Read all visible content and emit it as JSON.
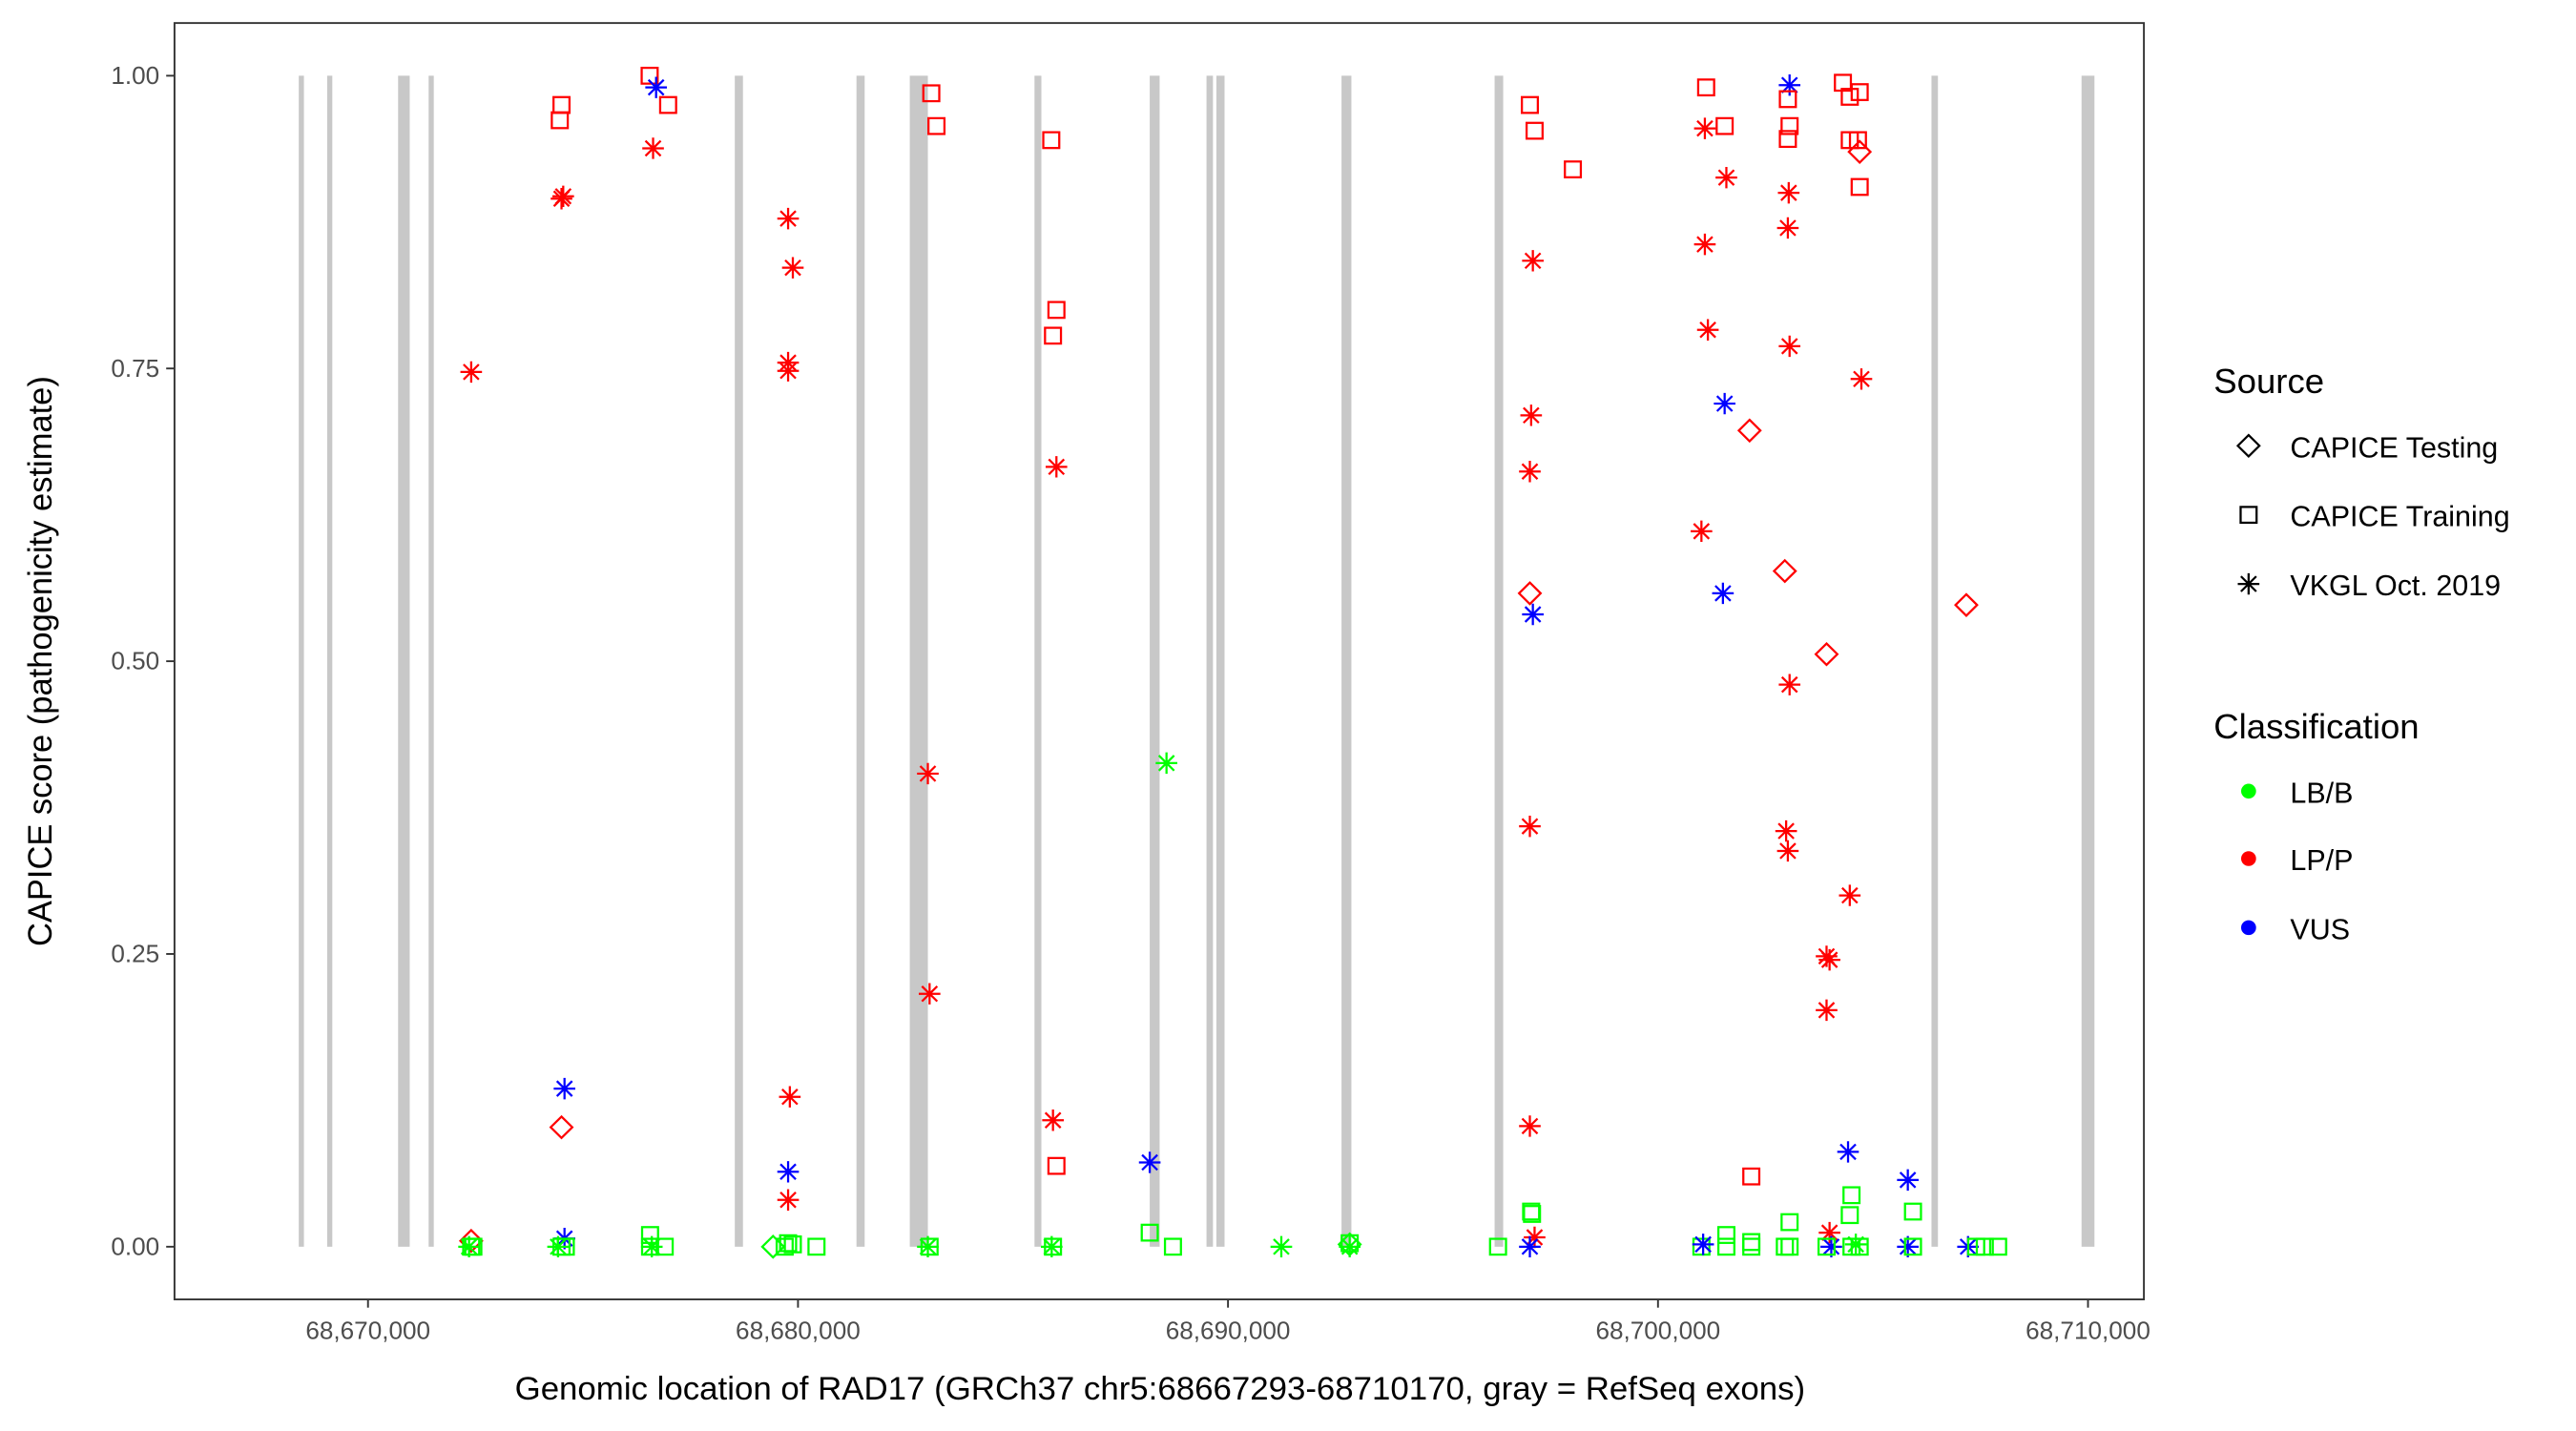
{
  "chart_data": {
    "type": "scatter",
    "xlabel": "Genomic location of RAD17 (GRCh37 chr5:68667293-68710170, gray = RefSeq exons)",
    "ylabel": "CAPICE score (pathogenicity estimate)",
    "xlim": [
      68665500,
      68711300
    ],
    "ylim": [
      -0.045,
      1.045
    ],
    "x_ticks": [
      68670000,
      68680000,
      68690000,
      68700000,
      68710000
    ],
    "x_tick_labels": [
      "68,670,000",
      "68,680,000",
      "68,690,000",
      "68,700,000",
      "68,710,000"
    ],
    "y_ticks": [
      0,
      0.25,
      0.5,
      0.75,
      1.0
    ],
    "y_tick_labels": [
      "0.00",
      "0.25",
      "0.50",
      "0.75",
      "1.00"
    ],
    "grid": false,
    "legend_position": "right",
    "exon_color": "#c8c8c8",
    "exons": [
      [
        68668390,
        68668510
      ],
      [
        68669050,
        68669170
      ],
      [
        68670700,
        68670970
      ],
      [
        68671410,
        68671530
      ],
      [
        68678530,
        68678720
      ],
      [
        68681360,
        68681550
      ],
      [
        68682600,
        68683020
      ],
      [
        68685500,
        68685660
      ],
      [
        68688180,
        68688410
      ],
      [
        68689500,
        68689650
      ],
      [
        68689730,
        68689920
      ],
      [
        68692640,
        68692870
      ],
      [
        68696200,
        68696400
      ],
      [
        68706360,
        68706510
      ],
      [
        68709850,
        68710150
      ]
    ],
    "legend": {
      "source_title": "Source",
      "sources": [
        {
          "key": "Testing",
          "label": "CAPICE Testing",
          "shape": "diamond"
        },
        {
          "key": "Training",
          "label": "CAPICE Training",
          "shape": "square"
        },
        {
          "key": "VKGL",
          "label": "VKGL Oct. 2019",
          "shape": "asterisk"
        }
      ],
      "class_title": "Classification",
      "classes": [
        {
          "key": "LB/B",
          "label": "LB/B",
          "color": "#00ff00"
        },
        {
          "key": "LP/P",
          "label": "LP/P",
          "color": "#ff0000"
        },
        {
          "key": "VUS",
          "label": "VUS",
          "color": "#0000ff"
        }
      ]
    },
    "points": [
      [
        68672400,
        0.747,
        "VKGL",
        "LP/P"
      ],
      [
        68672400,
        0.005,
        "Testing",
        "LP/P"
      ],
      [
        68672400,
        0,
        "Training",
        "LB/B"
      ],
      [
        68672350,
        0,
        "VKGL",
        "LB/B"
      ],
      [
        68672450,
        0,
        "Training",
        "LB/B"
      ],
      [
        68674500,
        0.975,
        "Training",
        "LP/P"
      ],
      [
        68674460,
        0.962,
        "Training",
        "LP/P"
      ],
      [
        68674540,
        0.897,
        "VKGL",
        "LP/P"
      ],
      [
        68674500,
        0.895,
        "VKGL",
        "LP/P"
      ],
      [
        68674570,
        0.135,
        "VKGL",
        "VUS"
      ],
      [
        68674500,
        0.102,
        "Testing",
        "LP/P"
      ],
      [
        68674570,
        0.007,
        "VKGL",
        "VUS"
      ],
      [
        68674500,
        0,
        "Training",
        "LB/B"
      ],
      [
        68674420,
        0,
        "VKGL",
        "LB/B"
      ],
      [
        68674600,
        0,
        "Training",
        "LB/B"
      ],
      [
        68676550,
        1.0,
        "Training",
        "LP/P"
      ],
      [
        68676980,
        0.975,
        "Training",
        "LP/P"
      ],
      [
        68676700,
        0.99,
        "VKGL",
        "VUS"
      ],
      [
        68676630,
        0.938,
        "VKGL",
        "LP/P"
      ],
      [
        68676560,
        0.01,
        "Training",
        "LB/B"
      ],
      [
        68676560,
        0,
        "Training",
        "LB/B"
      ],
      [
        68676600,
        0,
        "VKGL",
        "LB/B"
      ],
      [
        68676900,
        0,
        "Training",
        "LB/B"
      ],
      [
        68679770,
        0.878,
        "VKGL",
        "LP/P"
      ],
      [
        68679880,
        0.836,
        "VKGL",
        "LP/P"
      ],
      [
        68679770,
        0.755,
        "VKGL",
        "LP/P"
      ],
      [
        68679770,
        0.748,
        "VKGL",
        "LP/P"
      ],
      [
        68679810,
        0.128,
        "VKGL",
        "LP/P"
      ],
      [
        68679770,
        0.064,
        "VKGL",
        "VUS"
      ],
      [
        68679770,
        0.04,
        "VKGL",
        "LP/P"
      ],
      [
        68679420,
        0,
        "Testing",
        "LB/B"
      ],
      [
        68679690,
        0,
        "Training",
        "LB/B"
      ],
      [
        68679770,
        0.003,
        "Training",
        "LB/B"
      ],
      [
        68679880,
        0.002,
        "Training",
        "LB/B"
      ],
      [
        68680430,
        0,
        "Training",
        "LB/B"
      ],
      [
        68683100,
        0.985,
        "Training",
        "LP/P"
      ],
      [
        68683220,
        0.957,
        "Training",
        "LP/P"
      ],
      [
        68683020,
        0.404,
        "VKGL",
        "LP/P"
      ],
      [
        68683060,
        0.216,
        "VKGL",
        "LP/P"
      ],
      [
        68683060,
        0,
        "Training",
        "LB/B"
      ],
      [
        68683020,
        0,
        "VKGL",
        "LB/B"
      ],
      [
        68685890,
        0.945,
        "Training",
        "LP/P"
      ],
      [
        68686010,
        0.8,
        "Training",
        "LP/P"
      ],
      [
        68685930,
        0.778,
        "Training",
        "LP/P"
      ],
      [
        68686010,
        0.666,
        "VKGL",
        "LP/P"
      ],
      [
        68685930,
        0.108,
        "VKGL",
        "LP/P"
      ],
      [
        68686010,
        0.069,
        "Training",
        "LP/P"
      ],
      [
        68685930,
        0,
        "Training",
        "LB/B"
      ],
      [
        68685900,
        0,
        "VKGL",
        "LB/B"
      ],
      [
        68688180,
        0.072,
        "VKGL",
        "VUS"
      ],
      [
        68688180,
        0.012,
        "Training",
        "LB/B"
      ],
      [
        68688720,
        0,
        "Training",
        "LB/B"
      ],
      [
        68688570,
        0.413,
        "VKGL",
        "LB/B"
      ],
      [
        68691240,
        0,
        "VKGL",
        "LB/B"
      ],
      [
        68692830,
        0.003,
        "Training",
        "LB/B"
      ],
      [
        68692830,
        0,
        "VKGL",
        "LB/B"
      ],
      [
        68692830,
        0.002,
        "Testing",
        "LB/B"
      ],
      [
        68696280,
        0,
        "Training",
        "LB/B"
      ],
      [
        68697020,
        0.975,
        "Training",
        "LP/P"
      ],
      [
        68697130,
        0.953,
        "Training",
        "LP/P"
      ],
      [
        68698020,
        0.92,
        "Training",
        "LP/P"
      ],
      [
        68697090,
        0.842,
        "VKGL",
        "LP/P"
      ],
      [
        68697050,
        0.71,
        "VKGL",
        "LP/P"
      ],
      [
        68697020,
        0.662,
        "VKGL",
        "LP/P"
      ],
      [
        68697020,
        0.359,
        "VKGL",
        "LP/P"
      ],
      [
        68697020,
        0.103,
        "VKGL",
        "LP/P"
      ],
      [
        68697130,
        0.008,
        "VKGL",
        "LP/P"
      ],
      [
        68697020,
        0.558,
        "Testing",
        "LP/P"
      ],
      [
        68697090,
        0.54,
        "VKGL",
        "VUS"
      ],
      [
        68697020,
        0.0,
        "VKGL",
        "VUS"
      ],
      [
        68697050,
        0.03,
        "Training",
        "LB/B"
      ],
      [
        68697070,
        0.028,
        "Training",
        "LB/B"
      ],
      [
        68701120,
        0.99,
        "Training",
        "LP/P"
      ],
      [
        68701090,
        0.955,
        "VKGL",
        "LP/P"
      ],
      [
        68701550,
        0.957,
        "Training",
        "LP/P"
      ],
      [
        68701590,
        0.913,
        "VKGL",
        "LP/P"
      ],
      [
        68701090,
        0.856,
        "VKGL",
        "LP/P"
      ],
      [
        68701160,
        0.783,
        "VKGL",
        "LP/P"
      ],
      [
        68701010,
        0.611,
        "VKGL",
        "LP/P"
      ],
      [
        68701550,
        0.72,
        "VKGL",
        "VUS"
      ],
      [
        68701510,
        0.558,
        "VKGL",
        "VUS"
      ],
      [
        68702130,
        0.697,
        "Testing",
        "LP/P"
      ],
      [
        68702170,
        0.06,
        "Training",
        "LP/P"
      ],
      [
        68701590,
        0.01,
        "Training",
        "LB/B"
      ],
      [
        68701010,
        0,
        "Training",
        "LB/B"
      ],
      [
        68701590,
        0,
        "Training",
        "LB/B"
      ],
      [
        68702170,
        0,
        "Training",
        "LB/B"
      ],
      [
        68702170,
        0.004,
        "Training",
        "LB/B"
      ],
      [
        68701050,
        0.002,
        "VKGL",
        "VUS"
      ],
      [
        68703060,
        0.992,
        "VKGL",
        "VUS"
      ],
      [
        68703020,
        0.98,
        "Training",
        "LP/P"
      ],
      [
        68703060,
        0.957,
        "Training",
        "LP/P"
      ],
      [
        68703020,
        0.946,
        "Training",
        "LP/P"
      ],
      [
        68703040,
        0.9,
        "VKGL",
        "LP/P"
      ],
      [
        68703020,
        0.87,
        "VKGL",
        "LP/P"
      ],
      [
        68703060,
        0.769,
        "VKGL",
        "LP/P"
      ],
      [
        68703060,
        0.48,
        "VKGL",
        "LP/P"
      ],
      [
        68702980,
        0.355,
        "VKGL",
        "LP/P"
      ],
      [
        68703020,
        0.338,
        "VKGL",
        "LP/P"
      ],
      [
        68702950,
        0.577,
        "Testing",
        "LP/P"
      ],
      [
        68703060,
        0.021,
        "Training",
        "LB/B"
      ],
      [
        68702950,
        0,
        "Training",
        "LB/B"
      ],
      [
        68703060,
        0,
        "Training",
        "LB/B"
      ],
      [
        68703920,
        0.506,
        "Testing",
        "LP/P"
      ],
      [
        68703920,
        0.248,
        "VKGL",
        "LP/P"
      ],
      [
        68703990,
        0.245,
        "VKGL",
        "LP/P"
      ],
      [
        68703920,
        0.202,
        "VKGL",
        "LP/P"
      ],
      [
        68703990,
        0.012,
        "VKGL",
        "LP/P"
      ],
      [
        68704030,
        0,
        "VKGL",
        "VUS"
      ],
      [
        68703920,
        0,
        "Training",
        "LB/B"
      ],
      [
        68704300,
        0.994,
        "Training",
        "LP/P"
      ],
      [
        68704460,
        0.982,
        "Training",
        "LP/P"
      ],
      [
        68704690,
        0.986,
        "Training",
        "LP/P"
      ],
      [
        68704460,
        0.945,
        "Training",
        "LP/P"
      ],
      [
        68704650,
        0.945,
        "Training",
        "LP/P"
      ],
      [
        68704690,
        0.905,
        "Training",
        "LP/P"
      ],
      [
        68704690,
        0.935,
        "Testing",
        "LP/P"
      ],
      [
        68704730,
        0.741,
        "VKGL",
        "LP/P"
      ],
      [
        68704460,
        0.3,
        "VKGL",
        "LP/P"
      ],
      [
        68704420,
        0.081,
        "VKGL",
        "VUS"
      ],
      [
        68704500,
        0.044,
        "Training",
        "LB/B"
      ],
      [
        68704460,
        0.027,
        "Training",
        "LB/B"
      ],
      [
        68704500,
        0,
        "Training",
        "LB/B"
      ],
      [
        68704690,
        0,
        "Training",
        "LB/B"
      ],
      [
        68704600,
        0.002,
        "VKGL",
        "LB/B"
      ],
      [
        68705810,
        0.057,
        "VKGL",
        "VUS"
      ],
      [
        68705930,
        0.03,
        "Training",
        "LB/B"
      ],
      [
        68705810,
        0,
        "VKGL",
        "VUS"
      ],
      [
        68705930,
        0,
        "Training",
        "LB/B"
      ],
      [
        68707170,
        0.548,
        "Testing",
        "LP/P"
      ],
      [
        68707210,
        0,
        "VKGL",
        "VUS"
      ],
      [
        68707600,
        0,
        "Training",
        "LB/B"
      ],
      [
        68707910,
        0,
        "Training",
        "LB/B"
      ],
      [
        68707400,
        0,
        "Training",
        "LB/B"
      ]
    ]
  }
}
